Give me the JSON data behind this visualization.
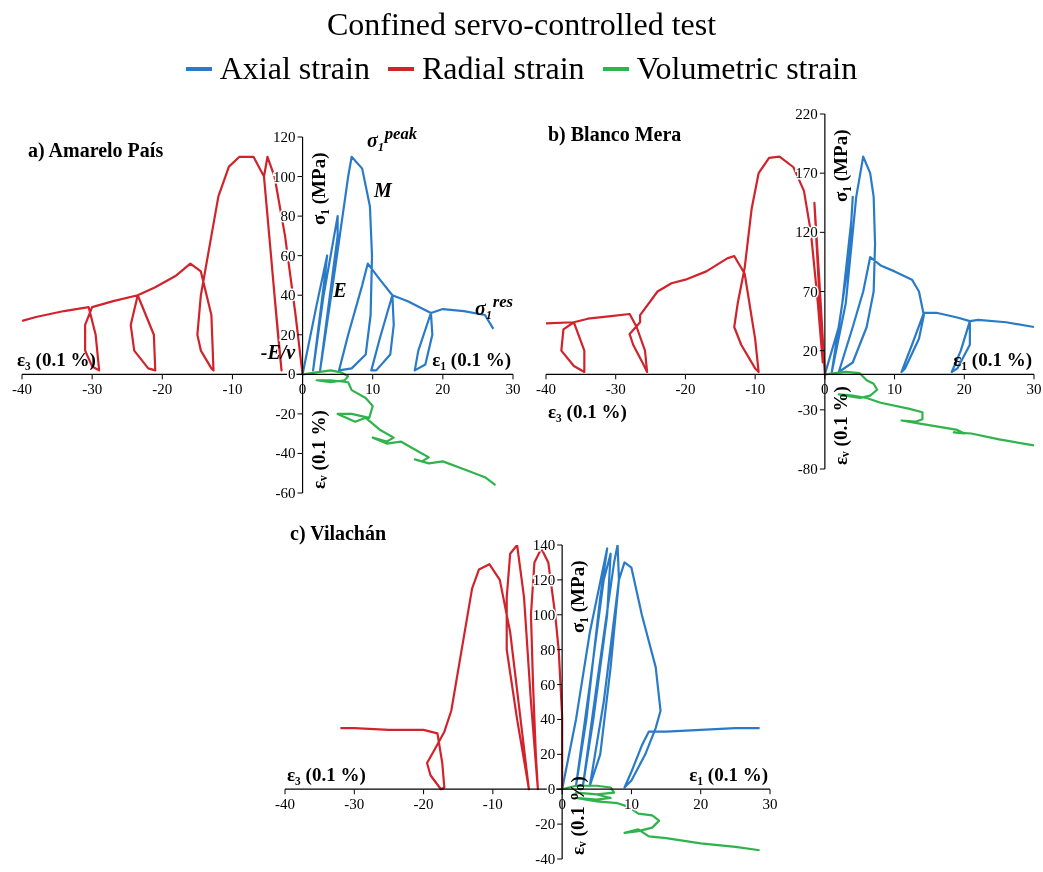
{
  "chart_data": [
    {
      "type": "line",
      "title": "Confined servo-controlled test",
      "subtitle": "a) Amarelo País",
      "legend": "top",
      "xlabel": "ε₁ (0.1 %)",
      "ylabel": "σ₁ (MPa)",
      "xlim": [
        -40,
        30
      ],
      "xticks": [
        -40,
        -30,
        -20,
        -10,
        0,
        10,
        20,
        30
      ],
      "ylim": [
        -60,
        120
      ],
      "yticks": [
        -60,
        -40,
        -20,
        0,
        20,
        40,
        60,
        80,
        100,
        120
      ],
      "annotations": [
        "ε₃ (0.1 %)",
        "εᵥ (0.1 %)",
        "σ₁$^{peak}$",
        "M",
        "E",
        "-E/ν",
        "σ₁$^{res}$"
      ],
      "series": [
        {
          "name": "Axial strain",
          "color": "#2a7bc7",
          "x": [
            0,
            2,
            3.5,
            3.2,
            1.5,
            3,
            5,
            5,
            2.5,
            4.5,
            6.5,
            7,
            8.5,
            9.6,
            9.9,
            9.7,
            9,
            7,
            5.2,
            6.5,
            8.5,
            9.3,
            11,
            12.8,
            13,
            12.5,
            10.5,
            9.8,
            11,
            12.8,
            15,
            18.3,
            18.5,
            17.5,
            16,
            16.5,
            18.3,
            20,
            23,
            26,
            27.2
          ],
          "values": [
            0,
            35,
            60,
            50,
            2,
            40,
            80,
            70,
            2,
            50,
            100,
            110,
            104,
            85,
            60,
            30,
            10,
            3,
            2,
            20,
            45,
            56,
            48,
            40,
            25,
            10,
            2,
            2,
            18,
            40,
            37,
            31,
            20,
            5,
            2,
            12,
            31,
            33,
            32,
            30,
            23
          ]
        },
        {
          "name": "Radial strain",
          "color": "#d1232b",
          "x": [
            0,
            -1,
            -2.5,
            -4,
            -5,
            -5.5,
            -4.5,
            -3.5,
            -3,
            -4,
            -5.5,
            -7,
            -9,
            -10.5,
            -12,
            -13.5,
            -14.5,
            -15,
            -14.5,
            -13,
            -12.7,
            -13,
            -14.5,
            -16,
            -18,
            -21,
            -23.5,
            -24.5,
            -24,
            -22,
            -21,
            -21.2,
            -23.5,
            -27,
            -30,
            -31,
            -31,
            -30,
            -29,
            -29.5,
            -30.5,
            -34,
            -38,
            -40
          ],
          "values": [
            0,
            30,
            70,
            100,
            110,
            100,
            60,
            20,
            2,
            40,
            100,
            110,
            110,
            105,
            90,
            60,
            40,
            20,
            12,
            3,
            2,
            30,
            52,
            56,
            50,
            44,
            40,
            25,
            12,
            3,
            2,
            20,
            40,
            37,
            34,
            25,
            12,
            4,
            2,
            20,
            34,
            32,
            29,
            27
          ]
        },
        {
          "name": "Volumetric strain",
          "color": "#2fb34b",
          "x": [
            0,
            2,
            4,
            5.5,
            6.5,
            6,
            4,
            2,
            4,
            6.5,
            7,
            9,
            10,
            9.5,
            7,
            5,
            7.5,
            9,
            11,
            13,
            12,
            10,
            12,
            14,
            16,
            18,
            17,
            16,
            18,
            20,
            23,
            26,
            27.5
          ],
          "values": [
            0,
            1,
            2,
            1,
            -1,
            -3,
            -4,
            -3,
            -3,
            -4,
            -8,
            -12,
            -16,
            -22,
            -20,
            -20,
            -24,
            -22,
            -28,
            -32,
            -34,
            -32,
            -35,
            -34,
            -38,
            -42,
            -44,
            -43,
            -45,
            -44,
            -48,
            -52,
            -56
          ]
        }
      ]
    },
    {
      "type": "line",
      "subtitle": "b) Blanco Mera",
      "xlabel": "ε₁ (0.1 %)",
      "ylabel": "σ₁ (MPa)",
      "xlim": [
        -40,
        30
      ],
      "xticks": [
        -40,
        -30,
        -20,
        -10,
        0,
        10,
        20,
        30
      ],
      "ylim": [
        -80,
        220
      ],
      "yticks": [
        -80,
        -30,
        20,
        70,
        120,
        170,
        220
      ],
      "annotations": [
        "ε₃ (0.1 %)",
        "εᵥ (0.1 %)"
      ],
      "series": [
        {
          "color": "#2a7bc7",
          "x": [
            0,
            2,
            3.5,
            4,
            3.8,
            2.5,
            1,
            3,
            4.5,
            5.5,
            6.5,
            7,
            7.2,
            7,
            6,
            4,
            2,
            4,
            5.5,
            6.5,
            8,
            10,
            12.5,
            13.5,
            14.2,
            13.5,
            11.5,
            11,
            12.5,
            14.2,
            16,
            19,
            20.8,
            20.8,
            19,
            18.2,
            19.5,
            20.8,
            22,
            26,
            30
          ],
          "values": [
            0,
            40,
            100,
            150,
            130,
            60,
            2,
            60,
            150,
            184,
            170,
            150,
            110,
            70,
            40,
            10,
            2,
            40,
            70,
            99,
            92,
            87,
            80,
            70,
            50,
            30,
            5,
            2,
            25,
            52,
            52,
            48,
            45,
            25,
            5,
            2,
            20,
            45,
            46,
            44,
            40
          ]
        },
        {
          "color": "#d1232b",
          "x": [
            0,
            -0.8,
            -1.5,
            -1,
            -0.3,
            -1,
            -2,
            -3,
            -4.5,
            -6.5,
            -8,
            -9.5,
            -10.5,
            -11.5,
            -12.5,
            -13,
            -12,
            -10,
            -9.5,
            -10,
            -11.5,
            -13,
            -14,
            -17,
            -20,
            -22,
            -24,
            -26.5,
            -26.5,
            -28,
            -27.5,
            -26,
            -25.5,
            -25.8,
            -27,
            -28,
            -31,
            -34,
            -36,
            -37.5,
            -37.8,
            -36,
            -34.5,
            -34.5,
            -36,
            -40
          ],
          "values": [
            0,
            80,
            145,
            90,
            10,
            60,
            120,
            155,
            175,
            184,
            183,
            170,
            140,
            90,
            60,
            40,
            25,
            5,
            2,
            30,
            85,
            100,
            98,
            87,
            80,
            77,
            70,
            50,
            44,
            34,
            25,
            8,
            2,
            20,
            40,
            51,
            49,
            47,
            44,
            38,
            20,
            7,
            2,
            20,
            44,
            43
          ]
        },
        {
          "color": "#2fb34b",
          "x": [
            0,
            3,
            5,
            6,
            7,
            7.5,
            6.5,
            5,
            3,
            2,
            4,
            6,
            8,
            12,
            14,
            14,
            13,
            11,
            13,
            16,
            19,
            20,
            18.5,
            21,
            25,
            30
          ],
          "values": [
            0,
            2,
            1,
            -5,
            -8,
            -13,
            -18,
            -20,
            -18,
            -17,
            -18,
            -20,
            -24,
            -29,
            -32,
            -38,
            -40,
            -39,
            -41,
            -44,
            -47,
            -50,
            -49,
            -50,
            -55,
            -60
          ]
        }
      ]
    },
    {
      "type": "line",
      "subtitle": "c) Vilachán",
      "xlabel": "ε₁ (0.1 %)",
      "ylabel": "σ₁ (MPa)",
      "xlim": [
        -40,
        30
      ],
      "xticks": [
        -40,
        -30,
        -20,
        -10,
        0,
        10,
        20,
        30
      ],
      "ylim": [
        -40,
        140
      ],
      "yticks": [
        -40,
        -20,
        0,
        20,
        40,
        60,
        80,
        100,
        120,
        140
      ],
      "annotations": [
        "ε₃ (0.1 %)",
        "εᵥ (0.1 %)"
      ],
      "series": [
        {
          "color": "#2a7bc7",
          "x": [
            0,
            2,
            4,
            6.5,
            5.5,
            3.5,
            2,
            4,
            6,
            7,
            6.5,
            4.5,
            3,
            5,
            7.5,
            8,
            8.2,
            7,
            5.5,
            4,
            6,
            8.2,
            9,
            10,
            11.5,
            13.5,
            14.2,
            13.5,
            12,
            10,
            9,
            10,
            11.5,
            12.5,
            15,
            20,
            25,
            28.5
          ],
          "values": [
            0,
            40,
            90,
            138,
            110,
            40,
            2,
            60,
            120,
            135,
            100,
            40,
            2,
            60,
            130,
            140,
            120,
            70,
            20,
            2,
            50,
            120,
            130,
            127,
            100,
            70,
            45,
            35,
            20,
            5,
            1,
            10,
            25,
            33,
            33,
            34,
            35,
            35
          ]
        },
        {
          "color": "#d1232b",
          "x": [
            0,
            0,
            -0.5,
            -1,
            -2,
            -3,
            -4,
            -4.5,
            -4.2,
            -3.8,
            -3.5,
            -4.5,
            -5.5,
            -6.5,
            -7.5,
            -8,
            -8,
            -6.5,
            -5,
            -4.8,
            -6,
            -7.5,
            -9,
            -10.5,
            -12,
            -13,
            -14.5,
            -16,
            -17,
            -18.5,
            -19.5,
            -19,
            -17.5,
            -17,
            -17.3,
            -18,
            -20,
            -25,
            -30,
            -32
          ],
          "values": [
            0,
            42,
            80,
            100,
            130,
            138,
            130,
            100,
            60,
            20,
            0,
            50,
            110,
            140,
            135,
            110,
            80,
            40,
            5,
            0,
            40,
            90,
            120,
            129,
            126,
            115,
            80,
            45,
            33,
            22,
            15,
            8,
            0,
            1,
            15,
            32,
            34,
            34,
            35,
            35
          ]
        },
        {
          "color": "#2fb34b",
          "x": [
            0,
            2,
            5,
            7,
            7.5,
            5,
            2,
            5,
            7,
            5,
            2,
            5,
            8,
            9.5,
            11,
            13,
            14,
            13,
            11,
            9,
            11,
            12.5,
            15,
            20,
            25,
            28.5
          ],
          "values": [
            0,
            2,
            2,
            1,
            -2,
            -3,
            -2,
            -3,
            -5,
            -6,
            -5,
            -7,
            -8,
            -10,
            -14,
            -15,
            -18,
            -22,
            -24,
            -25,
            -23,
            -27,
            -28,
            -31,
            -33,
            -35
          ]
        }
      ]
    }
  ]
}
